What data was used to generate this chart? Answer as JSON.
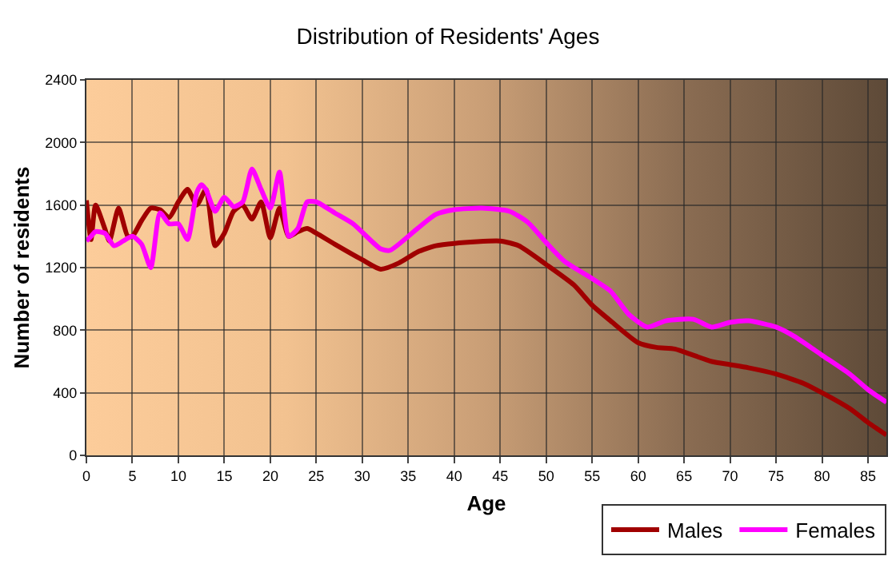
{
  "chart_data": {
    "type": "line",
    "title": "Distribution of Residents' Ages",
    "xlabel": "Age",
    "ylabel": "Number of residents",
    "xlim": [
      0,
      87
    ],
    "xticks": [
      0,
      5,
      10,
      15,
      20,
      25,
      30,
      35,
      40,
      45,
      50,
      55,
      60,
      65,
      70,
      75,
      80,
      85
    ],
    "ylim": [
      0,
      2400
    ],
    "yticks": [
      0,
      400,
      800,
      1200,
      1600,
      2000,
      2400
    ],
    "grid": true,
    "legend": "bottom right",
    "series": [
      {
        "name": "Males",
        "color": "#a00000",
        "x": [
          0,
          0.5,
          1,
          2,
          2.5,
          3.5,
          4.5,
          5,
          6,
          7,
          8,
          9,
          10,
          11,
          12,
          13,
          14,
          15,
          16,
          17,
          18,
          19,
          20,
          21,
          22,
          23,
          24,
          25,
          27,
          30,
          32,
          34,
          36,
          38,
          40,
          45,
          47,
          50,
          53,
          55,
          57,
          60,
          62,
          64,
          66,
          68,
          70,
          72,
          75,
          78,
          80,
          83,
          85,
          87
        ],
        "values": [
          1630,
          1380,
          1600,
          1450,
          1370,
          1580,
          1400,
          1400,
          1500,
          1580,
          1570,
          1520,
          1620,
          1700,
          1600,
          1700,
          1340,
          1420,
          1560,
          1600,
          1510,
          1620,
          1390,
          1580,
          1400,
          1430,
          1450,
          1420,
          1350,
          1250,
          1190,
          1230,
          1300,
          1340,
          1355,
          1370,
          1340,
          1220,
          1090,
          960,
          860,
          720,
          690,
          680,
          640,
          600,
          580,
          560,
          520,
          460,
          400,
          300,
          210,
          130
        ]
      },
      {
        "name": "Females",
        "color": "#ff00ff",
        "x": [
          0,
          0.5,
          1,
          2,
          3,
          4,
          5,
          6,
          7,
          8,
          9,
          10,
          11,
          12,
          12.5,
          13,
          14,
          15,
          16,
          17,
          18,
          19,
          20,
          21,
          22,
          23,
          24,
          25,
          27,
          29,
          32,
          33,
          36,
          38,
          40,
          43,
          46,
          48,
          50,
          52,
          55,
          57,
          59,
          61,
          63,
          66,
          68,
          70,
          72,
          75,
          77,
          80,
          83,
          85,
          87
        ],
        "values": [
          1370,
          1400,
          1430,
          1420,
          1340,
          1370,
          1400,
          1350,
          1200,
          1550,
          1480,
          1480,
          1380,
          1680,
          1730,
          1700,
          1560,
          1650,
          1590,
          1620,
          1830,
          1700,
          1580,
          1810,
          1400,
          1450,
          1620,
          1620,
          1550,
          1480,
          1320,
          1310,
          1450,
          1540,
          1570,
          1580,
          1560,
          1490,
          1360,
          1240,
          1130,
          1050,
          900,
          820,
          860,
          870,
          820,
          850,
          860,
          820,
          760,
          640,
          520,
          420,
          340
        ]
      }
    ]
  }
}
